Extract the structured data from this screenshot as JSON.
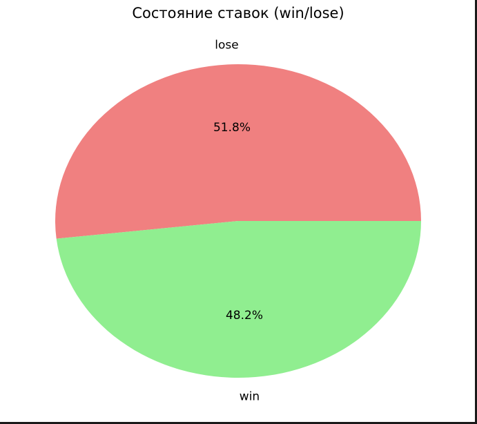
{
  "chart_data": {
    "type": "pie",
    "title": "Состояние ставок (win/lose)",
    "slices": [
      {
        "label": "lose",
        "value": 51.8,
        "pct_label": "51.8%",
        "color": "#f08080"
      },
      {
        "label": "win",
        "value": 48.2,
        "pct_label": "48.2%",
        "color": "#90ee90"
      }
    ],
    "start_angle_deg": 0,
    "direction": "counterclockwise",
    "legend": "none"
  }
}
